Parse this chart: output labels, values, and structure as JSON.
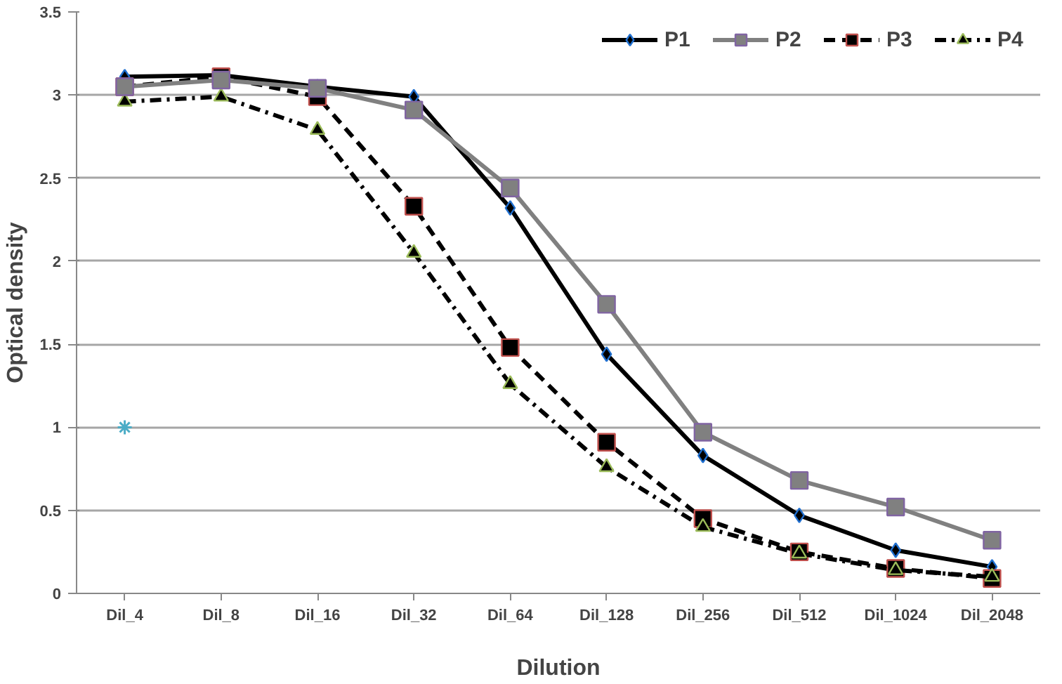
{
  "chart_data": {
    "type": "line",
    "xlabel": "Dilution",
    "ylabel": "Optical density",
    "categories": [
      "Dil_4",
      "Dil_8",
      "Dil_16",
      "Dil_32",
      "Dil_64",
      "Dil_128",
      "Dil_256",
      "Dil_512",
      "Dil_1024",
      "Dil_2048"
    ],
    "series": [
      {
        "name": "P1",
        "color": "#000000",
        "marker": "diamond",
        "line_style": "solid",
        "values": [
          3.11,
          3.12,
          3.05,
          2.99,
          2.32,
          1.44,
          0.83,
          0.47,
          0.26,
          0.16
        ]
      },
      {
        "name": "P2",
        "color": "#808080",
        "marker": "square",
        "line_style": "solid",
        "values": [
          3.05,
          3.09,
          3.04,
          2.91,
          2.44,
          1.74,
          0.97,
          0.68,
          0.52,
          0.32
        ]
      },
      {
        "name": "P3",
        "color": "#000000",
        "marker": "square",
        "line_style": "dashed",
        "values": [
          3.05,
          3.11,
          2.99,
          2.33,
          1.48,
          0.91,
          0.45,
          0.25,
          0.15,
          0.09
        ]
      },
      {
        "name": "P4",
        "color": "#000000",
        "marker": "triangle",
        "line_style": "dashdot",
        "values": [
          2.96,
          2.99,
          2.79,
          2.05,
          1.26,
          0.76,
          0.4,
          0.24,
          0.14,
          0.1
        ]
      },
      {
        "type": "scatter",
        "color": "#4bacc6",
        "marker": "cross",
        "values": [
          1,
          null,
          null,
          null,
          null,
          null,
          null,
          null,
          null,
          null
        ]
      }
    ],
    "ylim": [
      0,
      3.5
    ],
    "yticks": [
      0,
      0.5,
      1,
      1.5,
      2,
      2.5,
      3,
      3.5
    ],
    "grid": "y",
    "legend": "top right"
  }
}
